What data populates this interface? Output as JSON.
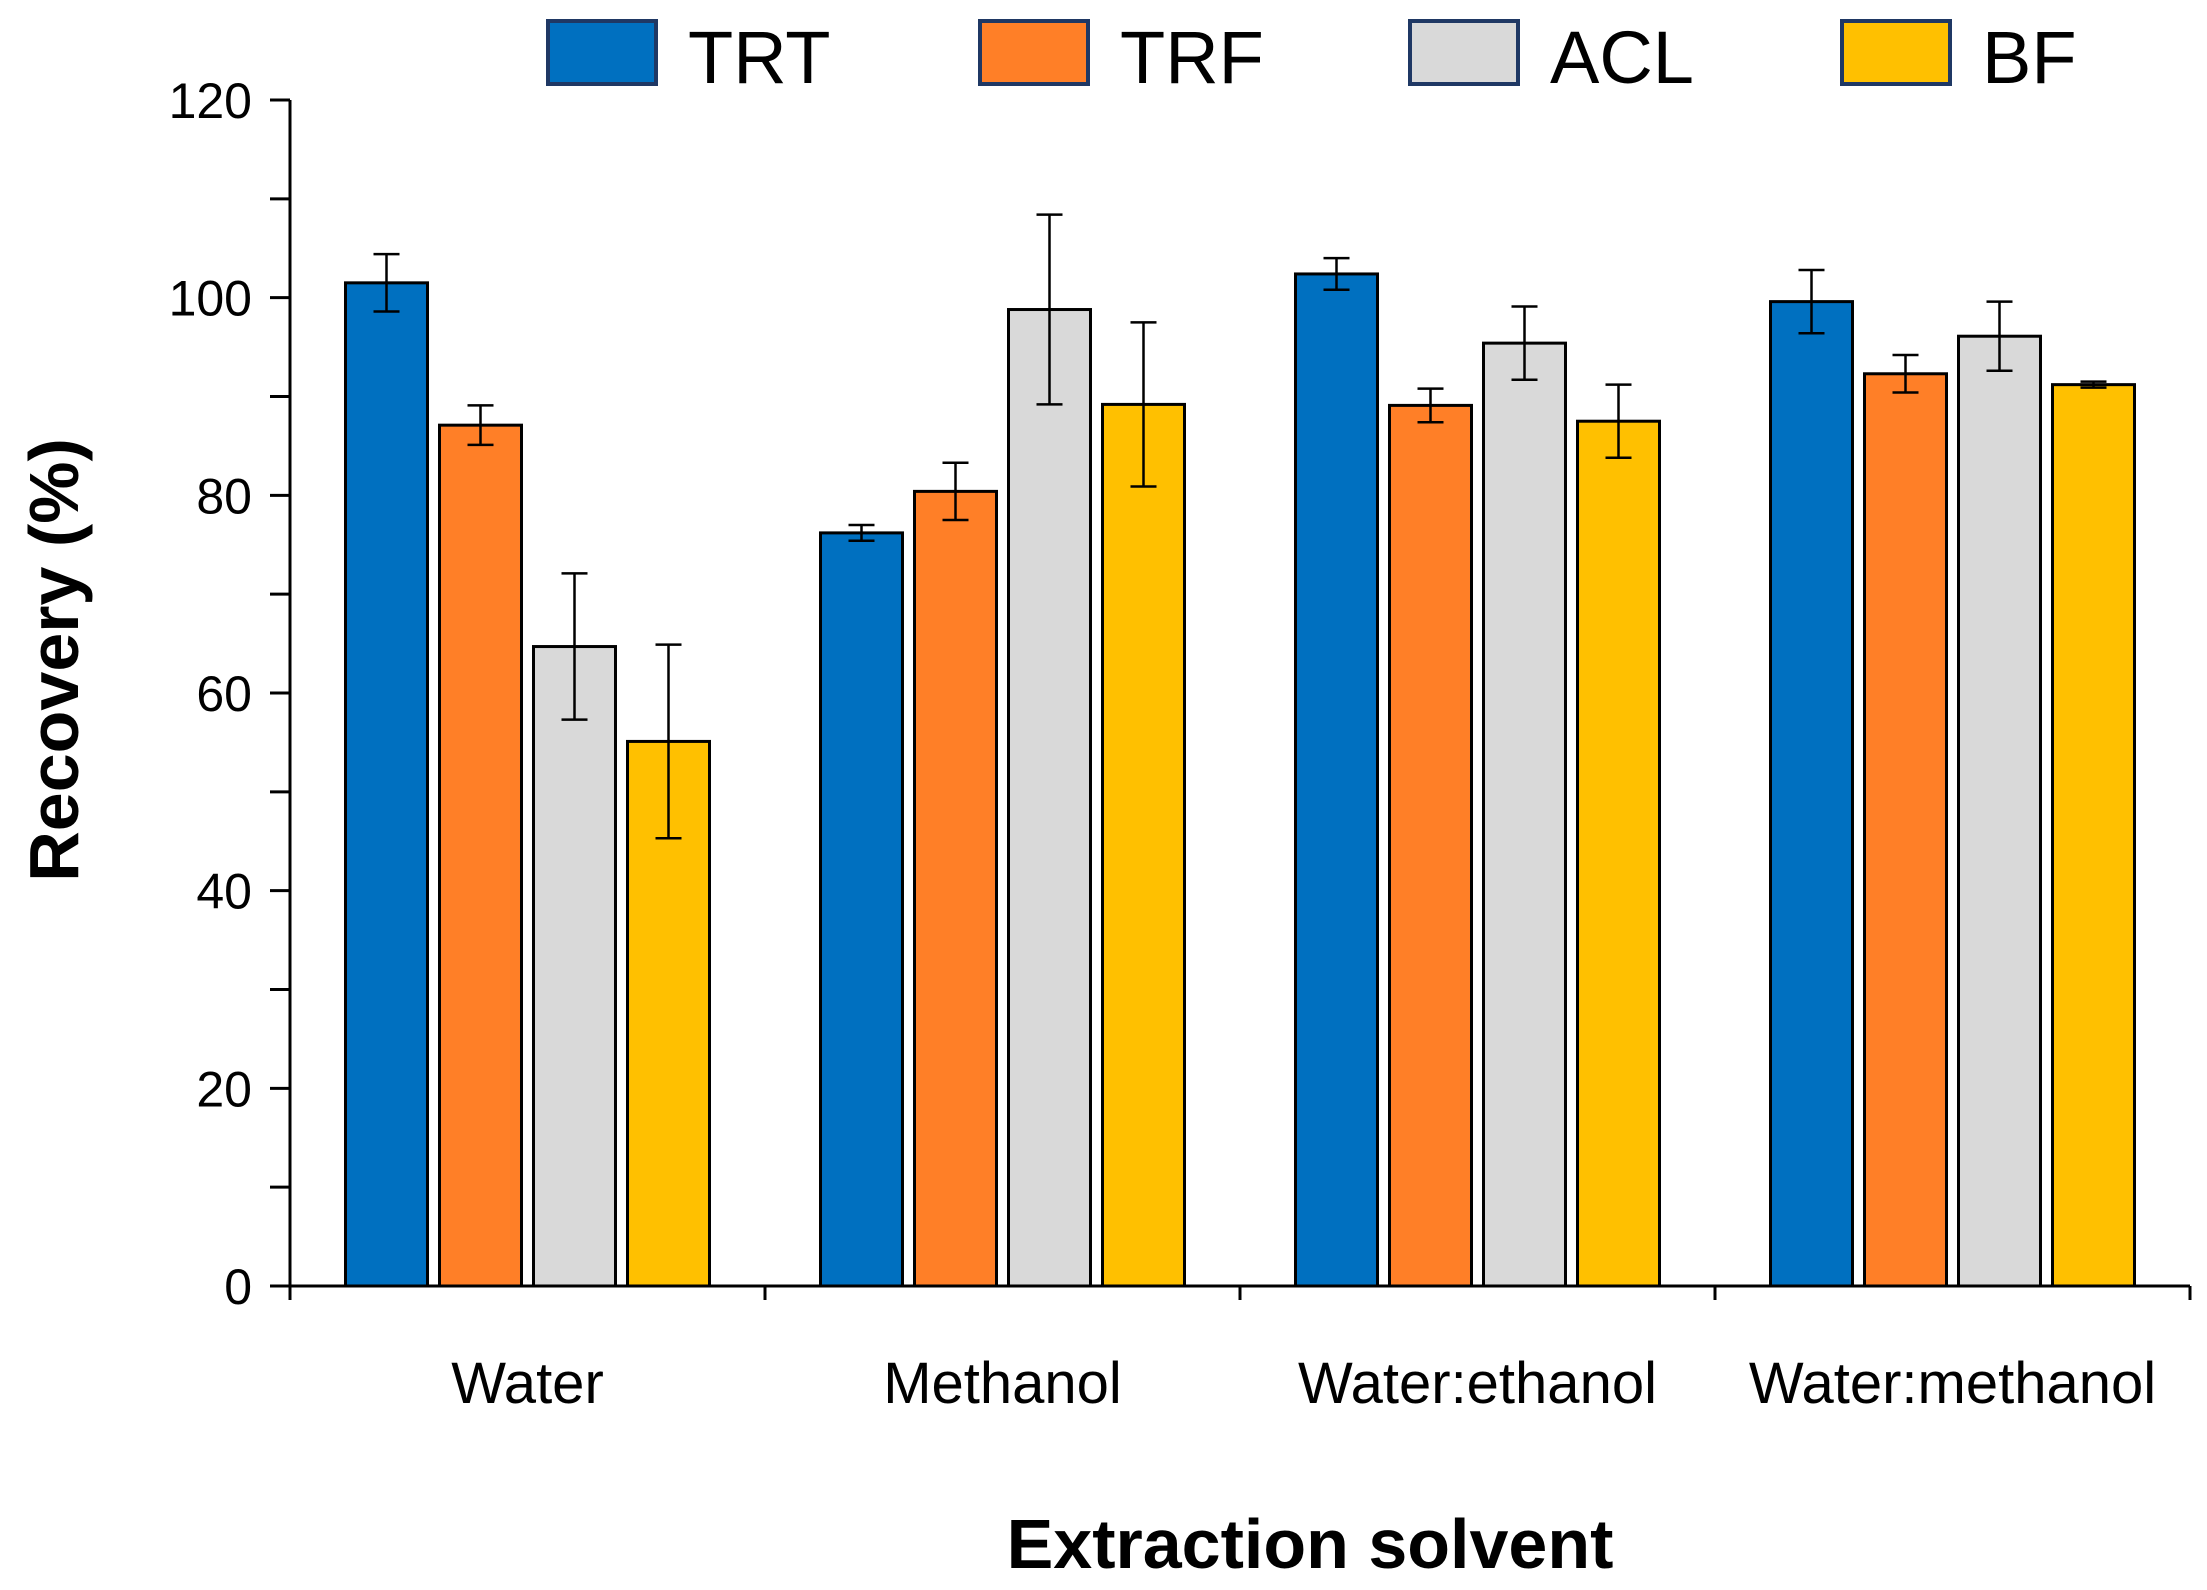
{
  "chart_data": {
    "type": "bar",
    "title": "",
    "xlabel": "Extraction solvent",
    "ylabel": "Recovery (%)",
    "ylim": [
      0,
      120
    ],
    "yticks": [
      0,
      20,
      40,
      60,
      80,
      100,
      120
    ],
    "yticks_minor_step": 10,
    "grid": false,
    "legend_position": "top",
    "categories": [
      "Water",
      "Methanol",
      "Water:ethanol",
      "Water:methanol"
    ],
    "series": [
      {
        "name": "TRT",
        "color": "#0070C0",
        "values": [
          101.5,
          76.2,
          102.4,
          99.6
        ],
        "errors": [
          2.9,
          0.8,
          1.6,
          3.2
        ]
      },
      {
        "name": "TRF",
        "color": "#FF7F27",
        "values": [
          87.1,
          80.4,
          89.1,
          92.3
        ],
        "errors": [
          2.0,
          2.9,
          1.7,
          1.9
        ]
      },
      {
        "name": "ACL",
        "color": "#D9D9D9",
        "values": [
          64.7,
          98.8,
          95.4,
          96.1
        ],
        "errors": [
          7.4,
          9.6,
          3.7,
          3.5
        ]
      },
      {
        "name": "BF",
        "color": "#FFC000",
        "values": [
          55.1,
          89.2,
          87.5,
          91.2
        ],
        "errors": [
          9.8,
          8.3,
          3.7,
          0.3
        ]
      }
    ]
  }
}
